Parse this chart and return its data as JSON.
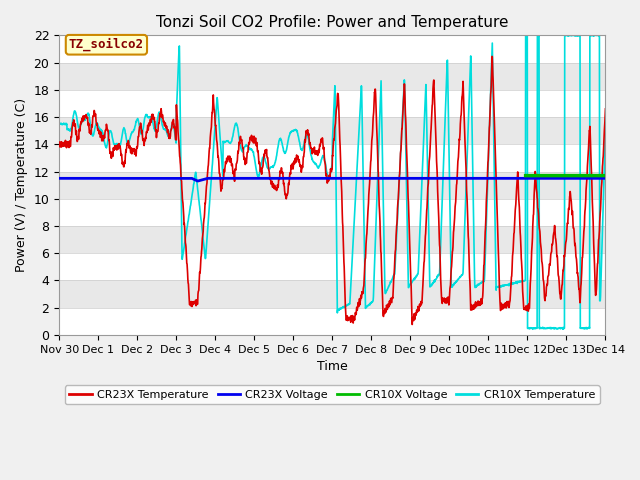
{
  "title": "Tonzi Soil CO2 Profile: Power and Temperature",
  "ylabel": "Power (V) / Temperature (C)",
  "xlabel": "Time",
  "box_label": "TZ_soilco2",
  "ylim": [
    0,
    22
  ],
  "colors": {
    "cr23x_temp": "#dd0000",
    "cr23x_volt": "#0000ee",
    "cr10x_volt": "#00bb00",
    "cr10x_temp": "#00dddd"
  },
  "legend_labels": [
    "CR23X Temperature",
    "CR23X Voltage",
    "CR10X Voltage",
    "CR10X Temperature"
  ],
  "xtick_labels": [
    "Nov 30",
    "Dec 1",
    "Dec 2",
    "Dec 3",
    "Dec 4",
    "Dec 5",
    "Dec 6",
    "Dec 7",
    "Dec 8",
    "Dec 9",
    "Dec 10",
    "Dec 11",
    "Dec 12",
    "Dec 13",
    "Dec 14"
  ],
  "yticks": [
    0,
    2,
    4,
    6,
    8,
    10,
    12,
    14,
    16,
    18,
    20,
    22
  ],
  "figsize": [
    6.4,
    4.8
  ],
  "dpi": 100
}
